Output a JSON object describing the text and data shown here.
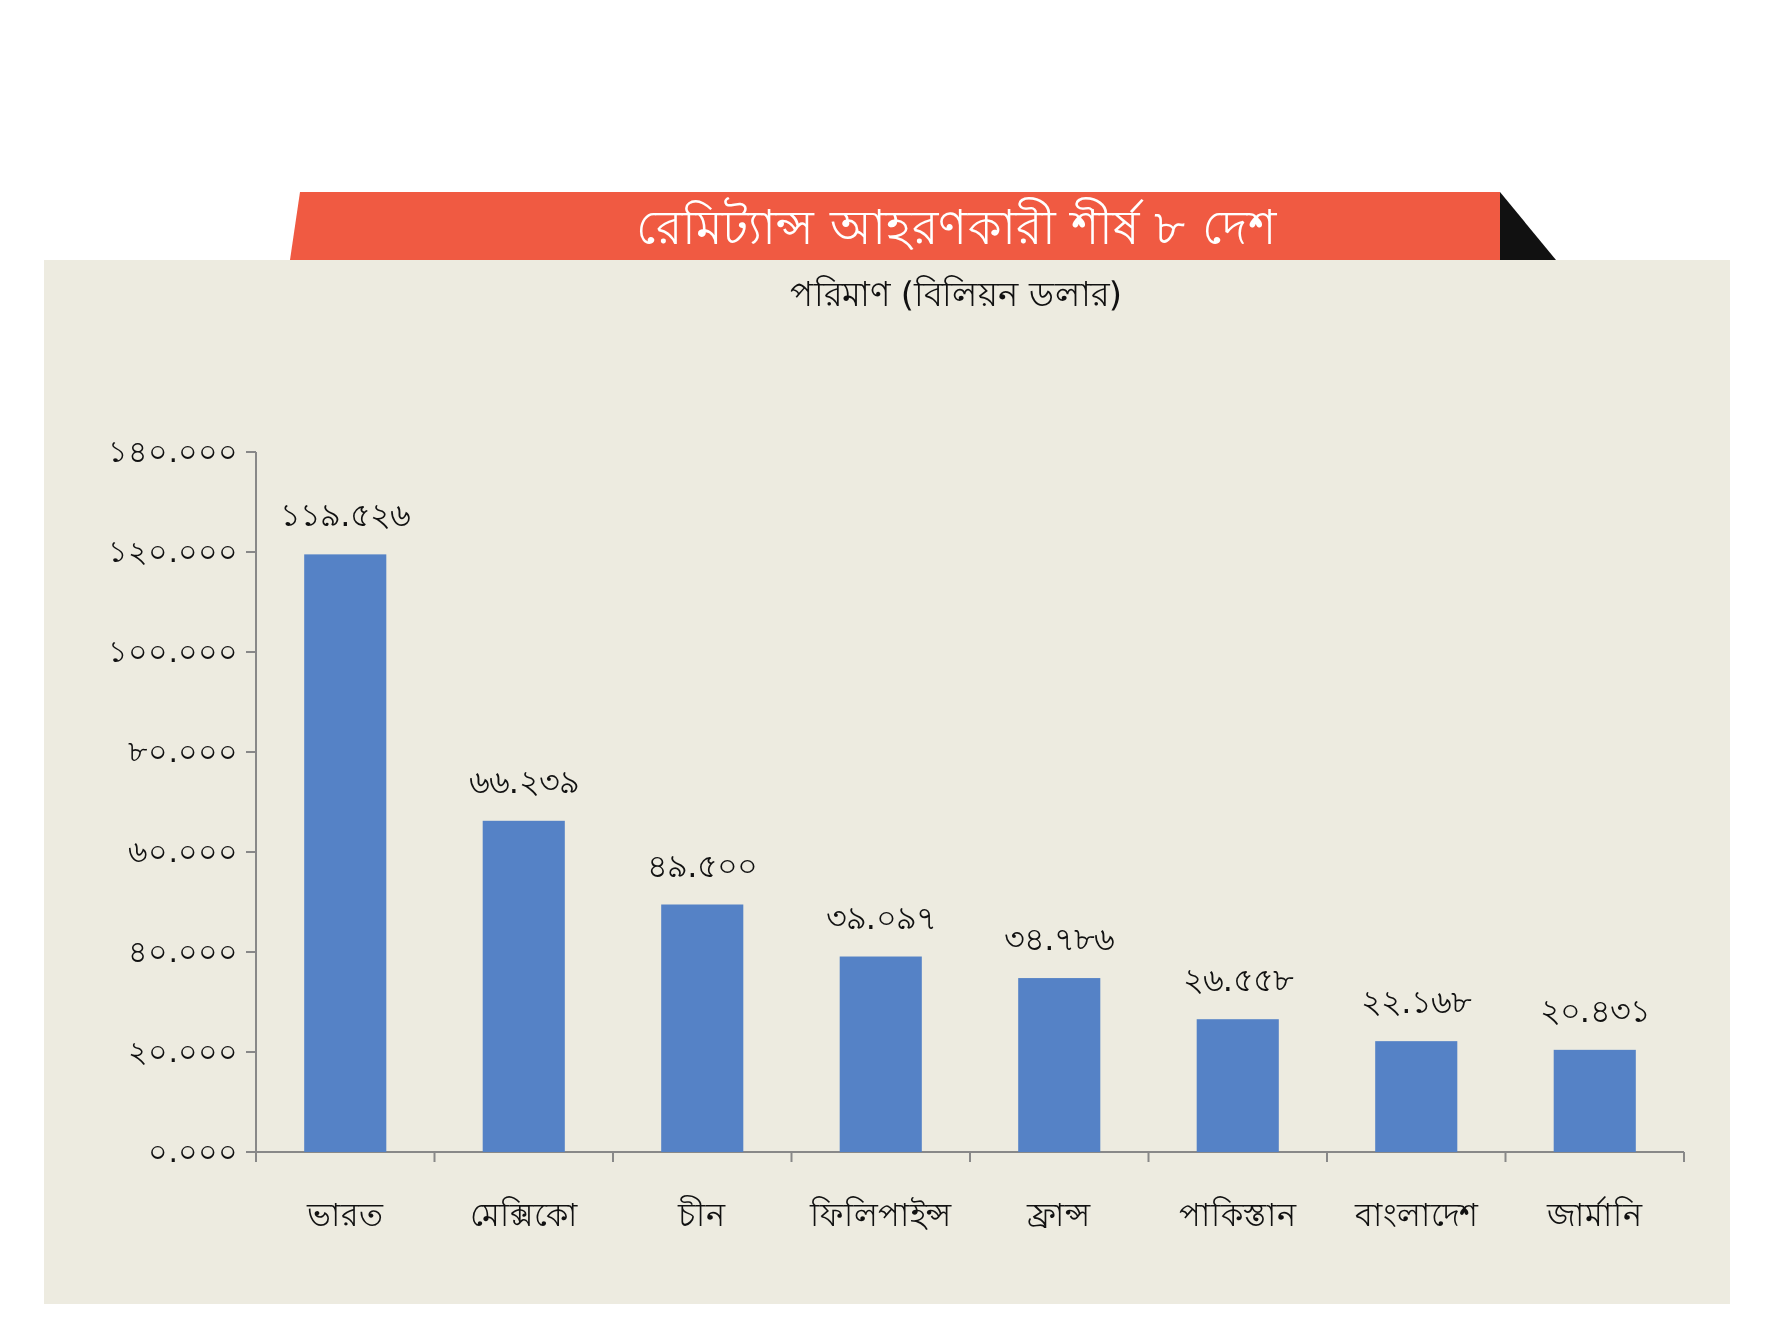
{
  "chart_data": {
    "type": "bar",
    "title": "রেমিট্যান্স আহরণকারী শীর্ষ ৮ দেশ",
    "subtitle": "পরিমাণ (বিলিয়ন ডলার)",
    "categories": [
      "ভারত",
      "মেক্সিকো",
      "চীন",
      "ফিলিপাইন্স",
      "ফ্রান্স",
      "পাকিস্তান",
      "বাংলাদেশ",
      "জার্মানি"
    ],
    "values": [
      119.526,
      66.239,
      49.5,
      39.097,
      34.786,
      26.558,
      22.168,
      20.431
    ],
    "value_labels": [
      "১১৯.৫২৬",
      "৬৬.২৩৯",
      "৪৯.৫০০",
      "৩৯.০৯৭",
      "৩৪.৭৮৬",
      "২৬.৫৫৮",
      "২২.১৬৮",
      "২০.৪৩১"
    ],
    "color": "#5582c6",
    "ylim": [
      0,
      140
    ],
    "yticks": [
      {
        "value": 0,
        "label": "০.০০০"
      },
      {
        "value": 20,
        "label": "২০.০০০"
      },
      {
        "value": 40,
        "label": "৪০.০০০"
      },
      {
        "value": 60,
        "label": "৬০.০০০"
      },
      {
        "value": 80,
        "label": "৮০.০০০"
      },
      {
        "value": 100,
        "label": "১০০.০০০"
      },
      {
        "value": 120,
        "label": "১২০.০০০"
      },
      {
        "value": 140,
        "label": "১৪০.০০০"
      }
    ]
  }
}
